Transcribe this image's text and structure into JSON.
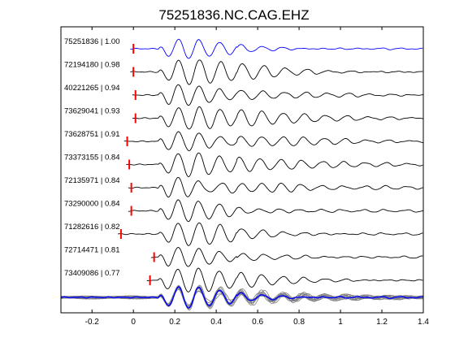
{
  "chart_data": {
    "type": "line",
    "title": "75251836.NC.CAG.EHZ",
    "xlabel": "",
    "ylabel": "",
    "xlim": [
      -0.35,
      1.4
    ],
    "x_ticks": [
      -0.2,
      0,
      0.2,
      0.4,
      0.6,
      0.8,
      1,
      1.2,
      1.4
    ],
    "x_tick_labels": [
      "-0.2",
      "0",
      "0.2",
      "0.4",
      "0.6",
      "0.8",
      "1",
      "1.2",
      "1.4"
    ],
    "grid": false,
    "colors": {
      "template": "#0000ff",
      "trace": "#000000",
      "pick": "#ff0000",
      "stack_members": "#808080"
    },
    "traces": [
      {
        "event_id": "75251836",
        "correlation": "1.00",
        "label": "75251836 | 1.00",
        "pick_time": 0.0,
        "color": "#0000ff"
      },
      {
        "event_id": "72194180",
        "correlation": "0.98",
        "label": "72194180 | 0.98",
        "pick_time": 0.0,
        "color": "#000000"
      },
      {
        "event_id": "40221265",
        "correlation": "0.94",
        "label": "40221265 | 0.94",
        "pick_time": 0.01,
        "color": "#000000"
      },
      {
        "event_id": "73629041",
        "correlation": "0.93",
        "label": "73629041 | 0.93",
        "pick_time": 0.01,
        "color": "#000000"
      },
      {
        "event_id": "73628751",
        "correlation": "0.91",
        "label": "73628751 | 0.91",
        "pick_time": -0.03,
        "color": "#000000"
      },
      {
        "event_id": "73373155",
        "correlation": "0.84",
        "label": "73373155 | 0.84",
        "pick_time": -0.02,
        "color": "#000000"
      },
      {
        "event_id": "72135971",
        "correlation": "0.84",
        "label": "72135971 | 0.84",
        "pick_time": -0.01,
        "color": "#000000"
      },
      {
        "event_id": "73290000",
        "correlation": "0.84",
        "label": "73290000 | 0.84",
        "pick_time": -0.01,
        "color": "#000000"
      },
      {
        "event_id": "71282616",
        "correlation": "0.82",
        "label": "71282616 | 0.82",
        "pick_time": -0.06,
        "color": "#000000"
      },
      {
        "event_id": "72714471",
        "correlation": "0.81",
        "label": "72714471 | 0.81",
        "pick_time": 0.1,
        "color": "#000000"
      },
      {
        "event_id": "73409086",
        "correlation": "0.77",
        "label": "73409086 | 0.77",
        "pick_time": 0.08,
        "color": "#000000"
      }
    ],
    "waveform": {
      "dominant_period": 0.1,
      "main_arrival": 0.2,
      "peak_time": 0.27
    }
  }
}
